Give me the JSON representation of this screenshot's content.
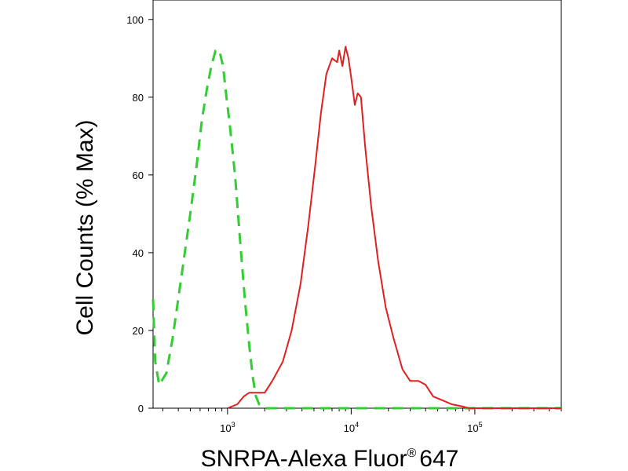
{
  "chart_data": {
    "type": "line",
    "title": "",
    "xlabel": "SNRPA-Alexa Fluor",
    "xlabel_superscript": "®",
    "xlabel_suffix": "647",
    "ylabel": "Cell Counts (% Max)",
    "x_scale": "log",
    "xlim": [
      250,
      500000
    ],
    "ylim": [
      0,
      105
    ],
    "yticks": [
      0,
      20,
      40,
      60,
      80,
      100
    ],
    "xticks": [
      {
        "base": "10",
        "exp": "3",
        "value": 1000
      },
      {
        "base": "10",
        "exp": "4",
        "value": 10000
      },
      {
        "base": "10",
        "exp": "5",
        "value": 100000
      }
    ],
    "grid": false,
    "legend": "none",
    "series": [
      {
        "color": "#33cc33",
        "style": "dashed",
        "points": [
          [
            250,
            28
          ],
          [
            260,
            12
          ],
          [
            280,
            6
          ],
          [
            320,
            9
          ],
          [
            360,
            18
          ],
          [
            420,
            33
          ],
          [
            500,
            50
          ],
          [
            560,
            62
          ],
          [
            620,
            74
          ],
          [
            680,
            82
          ],
          [
            740,
            88
          ],
          [
            800,
            92
          ],
          [
            860,
            92
          ],
          [
            920,
            88
          ],
          [
            980,
            80
          ],
          [
            1050,
            72
          ],
          [
            1150,
            60
          ],
          [
            1250,
            45
          ],
          [
            1380,
            28
          ],
          [
            1500,
            16
          ],
          [
            1600,
            8
          ],
          [
            1700,
            3
          ],
          [
            1800,
            1
          ],
          [
            2000,
            0
          ],
          [
            5000,
            0
          ],
          [
            20000,
            0
          ],
          [
            100000,
            0
          ],
          [
            500000,
            0
          ]
        ]
      },
      {
        "color": "#e02020",
        "style": "solid",
        "points": [
          [
            1000,
            0
          ],
          [
            1200,
            1
          ],
          [
            1350,
            3
          ],
          [
            1500,
            4
          ],
          [
            1800,
            4
          ],
          [
            2000,
            4
          ],
          [
            2300,
            7
          ],
          [
            2800,
            12
          ],
          [
            3300,
            20
          ],
          [
            3900,
            32
          ],
          [
            4500,
            47
          ],
          [
            5100,
            62
          ],
          [
            5700,
            76
          ],
          [
            6300,
            86
          ],
          [
            7000,
            90
          ],
          [
            7700,
            89
          ],
          [
            8000,
            92
          ],
          [
            8500,
            88
          ],
          [
            9000,
            93
          ],
          [
            9500,
            90
          ],
          [
            10000,
            85
          ],
          [
            10700,
            78
          ],
          [
            11300,
            81
          ],
          [
            12000,
            80
          ],
          [
            13000,
            67
          ],
          [
            14500,
            52
          ],
          [
            16500,
            38
          ],
          [
            19000,
            26
          ],
          [
            22000,
            18
          ],
          [
            26000,
            10
          ],
          [
            30000,
            7
          ],
          [
            35000,
            7
          ],
          [
            40000,
            6
          ],
          [
            46000,
            3
          ],
          [
            55000,
            2
          ],
          [
            65000,
            1
          ],
          [
            78000,
            0.5
          ],
          [
            90000,
            0
          ],
          [
            500000,
            0
          ]
        ]
      }
    ]
  }
}
